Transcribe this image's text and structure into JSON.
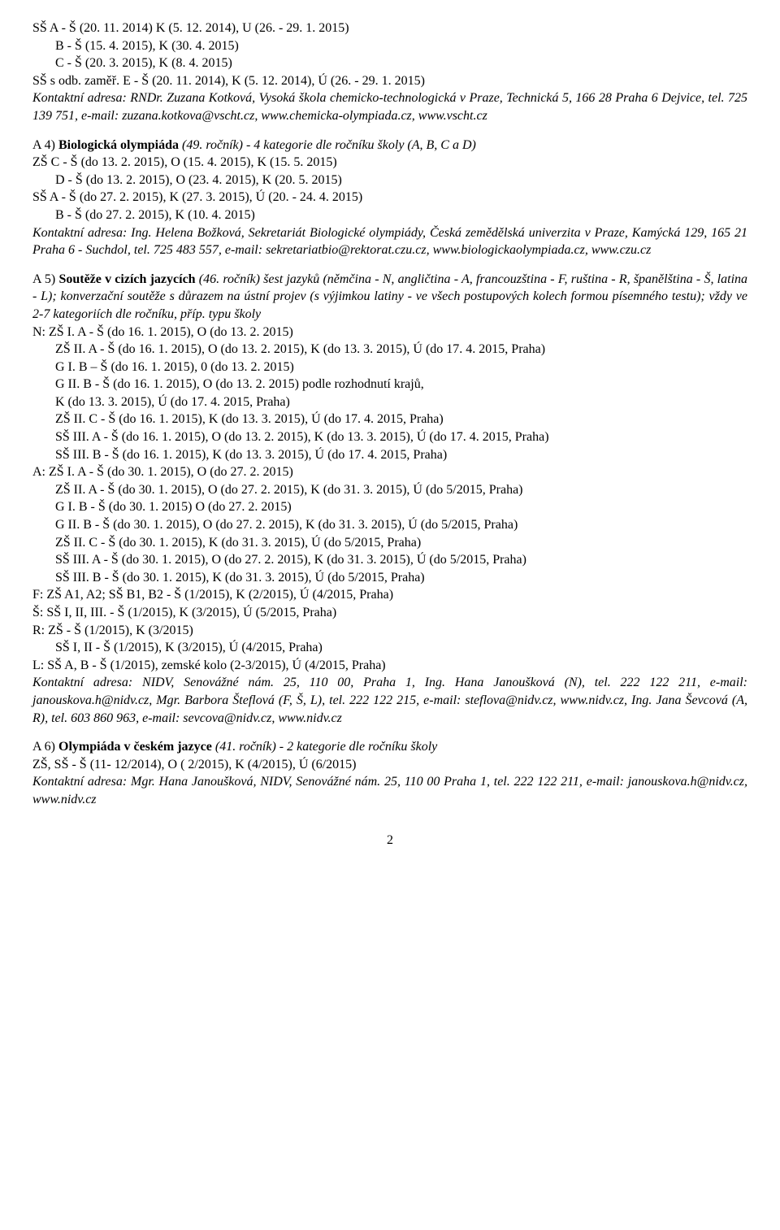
{
  "top": {
    "l1": "SŠ A - Š (20. 11. 2014) K (5. 12. 2014), U (26. - 29. 1. 2015)",
    "l2": "B - Š (15. 4. 2015), K (30. 4. 2015)",
    "l3": "C - Š (20. 3. 2015), K (8. 4. 2015)",
    "l4": "SŠ s odb. zaměř. E - Š (20. 11. 2014), K (5. 12. 2014), Ú (26. - 29. 1. 2015)",
    "contact": "Kontaktní adresa: RNDr. Zuzana Kotková, Vysoká škola chemicko-technologická v Praze, Technická 5, 166 28 Praha 6 Dejvice, tel. 725 139 751, e-mail: zuzana.kotkova@vscht.cz, www.chemicka-olympiada.cz, www.vscht.cz"
  },
  "s4": {
    "head_pre": "A 4) ",
    "head_bold": "Biologická olympiáda",
    "head_post": " (49. ročník) - 4 kategorie dle ročníku školy (A, B, C a D)",
    "l1": "ZŠ C - Š (do 13. 2. 2015), O (15. 4. 2015), K (15. 5. 2015)",
    "l2": "D - Š (do 13. 2. 2015), O (23. 4. 2015), K (20. 5. 2015)",
    "l3": "SŠ A - Š (do 27. 2. 2015), K (27. 3. 2015), Ú (20. - 24. 4. 2015)",
    "l4": "B - Š (do 27. 2. 2015), K (10. 4. 2015)",
    "contact": "Kontaktní adresa: Ing. Helena Božková, Sekretariát Biologické olympiády, Česká zemědělská univerzita v Praze, Kamýcká 129, 165 21 Praha 6 - Suchdol, tel. 725 483 557, e-mail: sekretariatbio@rektorat.czu.cz, www.biologickaolympiada.cz, www.czu.cz"
  },
  "s5": {
    "head_pre": "A 5) ",
    "head_bold": "Soutěže v cizích jazycích",
    "head_post": " (46. ročník) šest jazyků (němčina - N, angličtina - A, francouzština - F, ruština - R, španělština - Š, latina - L); konverzační soutěže s důrazem na ústní projev (s výjimkou latiny - ve všech postupových kolech formou písemného testu); vždy ve 2-7 kategoriích dle ročníku, příp. typu školy",
    "n1": "N: ZŠ I. A - Š (do 16. 1. 2015), O (do 13. 2. 2015)",
    "n2": "ZŠ II. A - Š (do 16. 1. 2015), O (do 13. 2. 2015), K (do 13. 3. 2015), Ú (do 17. 4. 2015, Praha)",
    "n3": "G I. B – Š (do 16. 1. 2015), 0 (do 13. 2. 2015)",
    "n4": "G II. B - Š (do 16. 1. 2015), O (do 13. 2. 2015) podle rozhodnutí krajů,",
    "n5": "K (do 13. 3. 2015), Ú (do 17. 4. 2015, Praha)",
    "n6": "ZŠ II. C - Š (do 16. 1. 2015), K (do 13. 3. 2015), Ú (do 17. 4. 2015, Praha)",
    "n7": "SŠ III. A - Š (do 16. 1. 2015), O (do 13. 2. 2015), K (do 13. 3. 2015), Ú (do 17. 4. 2015, Praha)",
    "n8": "SŠ III. B - Š (do 16. 1. 2015), K (do 13. 3. 2015), Ú (do 17. 4. 2015, Praha)",
    "a1": "A: ZŠ I. A - Š (do 30. 1. 2015), O (do 27. 2. 2015)",
    "a2": "ZŠ II. A - Š (do 30. 1. 2015), O (do 27. 2. 2015), K (do 31. 3. 2015), Ú (do 5/2015, Praha)",
    "a3": "G I. B -  Š (do 30. 1. 2015) O (do 27. 2. 2015)",
    "a4": "G II. B - Š (do 30. 1. 2015), O (do 27. 2. 2015), K (do 31. 3. 2015), Ú (do 5/2015, Praha)",
    "a5": "ZŠ II. C - Š (do 30. 1. 2015), K (do 31. 3. 2015), Ú (do 5/2015, Praha)",
    "a6": "SŠ III. A - Š (do 30. 1. 2015), O (do 27. 2. 2015), K (do 31. 3. 2015), Ú (do 5/2015, Praha)",
    "a7": "SŠ III. B - Š (do 30. 1. 2015), K (do 31. 3. 2015), Ú (do 5/2015, Praha)",
    "f1": "F:  ZŠ A1, A2; SŠ B1, B2 - Š (1/2015), K (2/2015), Ú (4/2015, Praha)",
    "sp1": "Š:  SŠ I, II, III. - Š (1/2015), K (3/2015), Ú (5/2015, Praha)",
    "r1": "R:  ZŠ - Š (1/2015), K (3/2015)",
    "r2": "SŠ I, II - Š (1/2015), K (3/2015), Ú (4/2015, Praha)",
    "la1": "L:  SŠ A, B - Š (1/2015), zemské kolo (2-3/2015), Ú (4/2015, Praha)",
    "contact": "Kontaktní adresa: NIDV, Senovážné nám. 25, 110 00, Praha 1, Ing. Hana Janoušková (N), tel. 222 122 211, e-mail: janouskova.h@nidv.cz, Mgr. Barbora Šteflová (F, Š, L), tel. 222 122 215, e-mail: steflova@nidv.cz, www.nidv.cz, Ing. Jana Ševcová (A, R), tel. 603 860 963, e-mail: sevcova@nidv.cz, www.nidv.cz"
  },
  "s6": {
    "head_pre": "A 6) ",
    "head_bold": "Olympiáda v českém jazyce",
    "head_post": " (41. ročník) - 2 kategorie dle ročníku školy",
    "l1": "ZŠ, SŠ - Š (11- 12/2014), O ( 2/2015), K (4/2015), Ú (6/2015)",
    "contact": "Kontaktní adresa: Mgr. Hana Janoušková, NIDV, Senovážné nám. 25, 110 00 Praha 1, tel. 222 122 211, e-mail: janouskova.h@nidv.cz, www.nidv.cz"
  },
  "page": "2"
}
